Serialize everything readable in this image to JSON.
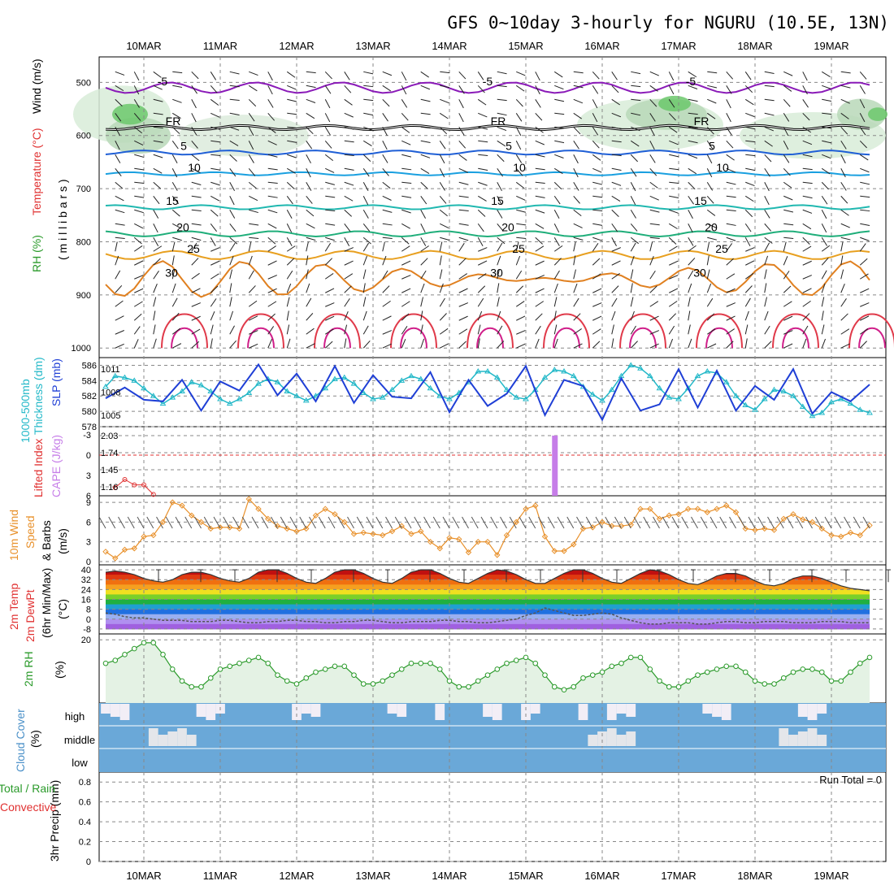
{
  "title": "GFS 0~10day 3-hourly for NGURU (10.5E, 13N)",
  "dates": [
    "10MAR",
    "11MAR",
    "12MAR",
    "13MAR",
    "14MAR",
    "15MAR",
    "16MAR",
    "17MAR",
    "18MAR",
    "19MAR"
  ],
  "run_total_label": "Run Total = 0",
  "colors": {
    "slp": "#1f3fd6",
    "thickness": "#22b8c8",
    "wind": "#e8902a",
    "rh": "#2a9a2a",
    "cloud": "#6aa8d8",
    "cape": "#c67de8",
    "li": "#e03030"
  },
  "panels": {
    "upper": {
      "ylabels": [
        "Wind (m/s)",
        "Temperature (°C)",
        "RH (%)",
        "( m i l l i b a r s )"
      ],
      "yticks": [
        "500",
        "600",
        "700",
        "800",
        "900",
        "1000"
      ]
    },
    "slp": {
      "ylabels": [
        "1000-500mb",
        "Thickness (dm)",
        "SLP (mb)"
      ],
      "yticks_left": [
        "586",
        "584",
        "582",
        "580",
        "578"
      ],
      "yticks_right": [
        "1011",
        "1008",
        "1005"
      ]
    },
    "cape": {
      "ylabels": [
        "Lifted Index",
        "CAPE (J/kg)"
      ],
      "yticks_left": [
        "-3",
        "0",
        "3",
        "6"
      ],
      "yticks_right": [
        "2.03",
        "1.74",
        "1.45",
        "1.16"
      ]
    },
    "wind10": {
      "ylabels": [
        "10m Wind",
        "Speed",
        "& Barbs",
        "(m/s)"
      ],
      "yticks": [
        "9",
        "6",
        "3",
        "0"
      ]
    },
    "temp2m": {
      "ylabels": [
        "2m Temp",
        "2m DewPt",
        "(6hr Min/Max)",
        "(°C)"
      ],
      "yticks": [
        "40",
        "32",
        "24",
        "16",
        "8",
        "0",
        "-8"
      ]
    },
    "rh2m": {
      "ylabels": [
        "2m RH",
        "(%)"
      ],
      "yticks": [
        "20"
      ]
    },
    "cloud": {
      "ylabels": [
        "Cloud Cover",
        "(%)"
      ],
      "levels": [
        "high",
        "middle",
        "low"
      ]
    },
    "precip": {
      "ylabels": [
        "3hr Precip (mm)",
        "Total / Rain",
        "Convective"
      ],
      "yticks": [
        "0.8",
        "0.6",
        "0.4",
        "0.2",
        "0"
      ]
    }
  },
  "chart_data": [
    {
      "type": "line",
      "title": "1000-500mb Thickness (dm)",
      "ylabel": "Thickness (dm)",
      "ylim": [
        578,
        587
      ],
      "x": [
        0,
        1,
        2,
        3,
        4,
        5,
        6,
        7,
        8,
        9,
        10,
        11,
        12,
        13,
        14,
        15,
        16,
        17,
        18,
        19,
        20,
        21,
        22,
        23,
        24,
        25,
        26,
        27,
        28,
        29,
        30,
        31,
        32,
        33,
        34,
        35,
        36,
        37,
        38,
        39,
        40,
        41,
        42,
        43,
        44,
        45,
        46,
        47,
        48,
        49,
        50,
        51,
        52,
        53,
        54,
        55,
        56,
        57,
        58,
        59,
        60,
        61,
        62,
        63,
        64,
        65,
        66,
        67,
        68,
        69,
        70,
        71,
        72,
        73,
        74,
        75,
        76,
        77,
        78,
        79,
        80
      ],
      "series": [
        {
          "name": "Thickness",
          "values": [
            583.2,
            584.6,
            584.4,
            584.0,
            583.0,
            582.0,
            581.0,
            581.8,
            582.6,
            583.8,
            583.4,
            582.6,
            581.6,
            581.0,
            581.6,
            582.4,
            583.6,
            584.2,
            583.8,
            582.6,
            582.0,
            581.4,
            582.0,
            583.0,
            584.2,
            584.4,
            583.6,
            582.4,
            581.6,
            581.8,
            582.8,
            584.0,
            584.6,
            584.2,
            583.0,
            582.0,
            581.6,
            582.4,
            583.8,
            585.2,
            585.2,
            584.4,
            582.8,
            581.8,
            581.6,
            582.8,
            584.4,
            585.4,
            585.2,
            584.6,
            583.2,
            582.2,
            581.4,
            582.8,
            584.6,
            586.0,
            585.6,
            584.6,
            583.0,
            581.8,
            581.6,
            583.0,
            584.6,
            585.2,
            585.0,
            583.8,
            582.0,
            580.8,
            580.2,
            581.6,
            582.8,
            582.6,
            582.0,
            580.6,
            579.4,
            579.8,
            581.2,
            581.6,
            581.0,
            580.2,
            579.8
          ]
        }
      ]
    },
    {
      "type": "line",
      "title": "SLP (mb)",
      "ylabel": "SLP (mb)",
      "ylim": [
        1003.5,
        1012.5
      ],
      "x": [
        0,
        2,
        4,
        6,
        8,
        10,
        12,
        14,
        16,
        18,
        20,
        22,
        24,
        26,
        28,
        30,
        32,
        34,
        36,
        38,
        40,
        42,
        44,
        46,
        48,
        50,
        52,
        54,
        56,
        58,
        60,
        62,
        64,
        66,
        68,
        70,
        72,
        74,
        76,
        78,
        80
      ],
      "series": [
        {
          "name": "SLP",
          "values": [
            1007.2,
            1008.6,
            1007.0,
            1006.8,
            1009.6,
            1005.6,
            1009.4,
            1008.2,
            1011.6,
            1007.6,
            1010.4,
            1006.8,
            1011.4,
            1006.6,
            1010.2,
            1007.4,
            1007.2,
            1010.6,
            1005.4,
            1009.6,
            1006.2,
            1007.8,
            1011.4,
            1005.0,
            1009.6,
            1008.8,
            1004.4,
            1009.8,
            1005.6,
            1006.4,
            1011.0,
            1006.0,
            1010.8,
            1005.6,
            1008.8,
            1007.0,
            1011.0,
            1005.2,
            1008.0,
            1006.8,
            1009.0
          ]
        }
      ]
    },
    {
      "type": "bar",
      "title": "CAPE (J/kg)",
      "ylabel": "CAPE (J/kg)",
      "categories": [
        "15MAR"
      ],
      "values": [
        2.03
      ]
    },
    {
      "type": "line",
      "title": "10m Wind Speed (m/s)",
      "ylabel": "(m/s)",
      "ylim": [
        0,
        10
      ],
      "x": [
        0,
        1,
        2,
        3,
        4,
        5,
        6,
        7,
        8,
        9,
        10,
        11,
        12,
        13,
        14,
        15,
        16,
        17,
        18,
        19,
        20,
        21,
        22,
        23,
        24,
        25,
        26,
        27,
        28,
        29,
        30,
        31,
        32,
        33,
        34,
        35,
        36,
        37,
        38,
        39,
        40,
        41,
        42,
        43,
        44,
        45,
        46,
        47,
        48,
        49,
        50,
        51,
        52,
        53,
        54,
        55,
        56,
        57,
        58,
        59,
        60,
        61,
        62,
        63,
        64,
        65,
        66,
        67,
        68,
        69,
        70,
        71,
        72,
        73,
        74,
        75,
        76,
        77,
        78,
        79,
        80
      ],
      "series": [
        {
          "name": "10m Wind Speed",
          "values": [
            1.5,
            0.5,
            1.8,
            2.0,
            3.8,
            4.0,
            6.0,
            9.0,
            8.5,
            7.0,
            6.0,
            5.0,
            5.2,
            5.2,
            5.0,
            9.5,
            8.0,
            6.5,
            5.4,
            5.0,
            4.6,
            5.0,
            7.0,
            8.0,
            7.2,
            6.0,
            4.2,
            4.4,
            4.2,
            4.0,
            4.6,
            5.4,
            4.2,
            4.6,
            3.0,
            2.0,
            3.6,
            3.4,
            1.4,
            3.0,
            3.0,
            1.0,
            4.0,
            6.0,
            8.0,
            8.5,
            3.8,
            1.6,
            1.6,
            2.6,
            5.0,
            5.2,
            6.0,
            5.4,
            5.4,
            5.6,
            8.0,
            8.0,
            6.5,
            7.0,
            7.2,
            8.0,
            8.0,
            7.5,
            8.0,
            8.5,
            7.5,
            5.0,
            4.8,
            5.0,
            4.8,
            6.5,
            7.2,
            6.4,
            6.0,
            5.0,
            4.0,
            3.8,
            4.4,
            4.0,
            5.5
          ]
        }
      ]
    },
    {
      "type": "area",
      "title": "2m Temp (°C)",
      "ylabel": "(°C)",
      "ylim": [
        -10,
        42
      ],
      "x": [
        0,
        1,
        2,
        3,
        4,
        5,
        6,
        7,
        8,
        9,
        10,
        11,
        12,
        13,
        14,
        15,
        16,
        17,
        18,
        19,
        20,
        21,
        22,
        23,
        24,
        25,
        26,
        27,
        28,
        29,
        30,
        31,
        32,
        33,
        34,
        35,
        36,
        37,
        38,
        39,
        40,
        41,
        42,
        43,
        44,
        45,
        46,
        47,
        48,
        49,
        50,
        51,
        52,
        53,
        54,
        55,
        56,
        57,
        58,
        59,
        60,
        61,
        62,
        63,
        64,
        65,
        66,
        67,
        68,
        69,
        70,
        71,
        72,
        73,
        74,
        75,
        76,
        77,
        78,
        79,
        80
      ],
      "series": [
        {
          "name": "2m Temp",
          "values": [
            38,
            39,
            38,
            36,
            33,
            31,
            30,
            32,
            36,
            38,
            38,
            36,
            33,
            31,
            30,
            33,
            38,
            40,
            40,
            37,
            33,
            30,
            29,
            33,
            38,
            40,
            40,
            37,
            33,
            30,
            29,
            33,
            38,
            40,
            40,
            37,
            33,
            30,
            29,
            33,
            37,
            40,
            39,
            36,
            32,
            29,
            29,
            33,
            37,
            40,
            40,
            37,
            33,
            30,
            29,
            33,
            37,
            40,
            39,
            36,
            32,
            29,
            28,
            31,
            35,
            37,
            37,
            35,
            31,
            28,
            27,
            29,
            33,
            35,
            35,
            33,
            30,
            27,
            25,
            24,
            23
          ]
        },
        {
          "name": "2m DewPt",
          "values": [
            5,
            4,
            2,
            1,
            1,
            0,
            -1,
            -1,
            -1,
            -2,
            -2,
            -2,
            -1,
            -1,
            -2,
            -3,
            -3,
            -2,
            -2,
            -1,
            -1,
            -2,
            -2,
            -3,
            -3,
            -2,
            -2,
            -1,
            -1,
            -2,
            -3,
            -3,
            -2,
            -2,
            -2,
            -1,
            -1,
            -2,
            -2,
            -3,
            -3,
            -2,
            -1,
            0,
            3,
            5,
            9,
            7,
            5,
            3,
            3,
            4,
            5,
            4,
            1,
            -1,
            -3,
            -4,
            -4,
            -3,
            -3,
            -3,
            -4,
            -4,
            -3,
            -2,
            -2,
            -3,
            -3,
            -2,
            -2,
            -2,
            -3,
            -3,
            -3,
            -2,
            -2,
            -2,
            -3,
            -3,
            -3
          ]
        }
      ]
    },
    {
      "type": "line",
      "title": "2m RH (%)",
      "ylabel": "(%)",
      "ylim": [
        0,
        22
      ],
      "x": [
        0,
        1,
        2,
        3,
        4,
        5,
        6,
        7,
        8,
        9,
        10,
        11,
        12,
        13,
        14,
        15,
        16,
        17,
        18,
        19,
        20,
        21,
        22,
        23,
        24,
        25,
        26,
        27,
        28,
        29,
        30,
        31,
        32,
        33,
        34,
        35,
        36,
        37,
        38,
        39,
        40,
        41,
        42,
        43,
        44,
        45,
        46,
        47,
        48,
        49,
        50,
        51,
        52,
        53,
        54,
        55,
        56,
        57,
        58,
        59,
        60,
        61,
        62,
        63,
        64,
        65,
        66,
        67,
        68,
        69,
        70,
        71,
        72,
        73,
        74,
        75,
        76,
        77,
        78,
        79,
        80
      ],
      "series": [
        {
          "name": "2m RH",
          "values": [
            12,
            13,
            15,
            17,
            19,
            19,
            15,
            10,
            6,
            4,
            4,
            7,
            10,
            11,
            12,
            13,
            14,
            12,
            8,
            6,
            5,
            7,
            9,
            10,
            11,
            11,
            8,
            5,
            5,
            6,
            8,
            10,
            12,
            12,
            12,
            10,
            6,
            4,
            4,
            6,
            8,
            10,
            12,
            13,
            14,
            12,
            8,
            4,
            3,
            4,
            7,
            8,
            9,
            11,
            12,
            14,
            14,
            10,
            6,
            4,
            4,
            6,
            8,
            9,
            10,
            11,
            11,
            9,
            6,
            5,
            5,
            7,
            9,
            10,
            10,
            9,
            6,
            6,
            9,
            12,
            14
          ]
        }
      ]
    },
    {
      "type": "bar",
      "title": "3hr Precip (mm)",
      "ylabel": "3hr Precip (mm)",
      "ylim": [
        0,
        0.9
      ],
      "categories": [],
      "values": []
    }
  ]
}
